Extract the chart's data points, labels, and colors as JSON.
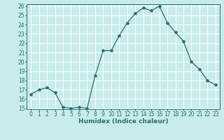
{
  "x": [
    0,
    1,
    2,
    3,
    4,
    5,
    6,
    7,
    8,
    9,
    10,
    11,
    12,
    13,
    14,
    15,
    16,
    17,
    18,
    19,
    20,
    21,
    22,
    23
  ],
  "y": [
    16.5,
    17.0,
    17.2,
    16.7,
    15.1,
    15.0,
    15.1,
    15.0,
    18.5,
    21.2,
    21.2,
    22.8,
    24.2,
    25.2,
    25.8,
    25.5,
    26.0,
    24.2,
    23.2,
    22.2,
    20.0,
    19.2,
    18.0,
    17.5
  ],
  "line_color": "#2d6e6e",
  "marker": "*",
  "marker_size": 3,
  "bg_color": "#c8ecec",
  "grid_color": "#ffffff",
  "xlabel": "Humidex (Indice chaleur)",
  "ylim": [
    15,
    26
  ],
  "xlim": [
    -0.5,
    23.5
  ],
  "yticks": [
    15,
    16,
    17,
    18,
    19,
    20,
    21,
    22,
    23,
    24,
    25,
    26
  ],
  "xticks": [
    0,
    1,
    2,
    3,
    4,
    5,
    6,
    7,
    8,
    9,
    10,
    11,
    12,
    13,
    14,
    15,
    16,
    17,
    18,
    19,
    20,
    21,
    22,
    23
  ],
  "tick_color": "#2d6e6e",
  "label_color": "#2d6e6e",
  "font_size": 5.5,
  "xlabel_fontsize": 6.5,
  "linewidth": 0.9
}
